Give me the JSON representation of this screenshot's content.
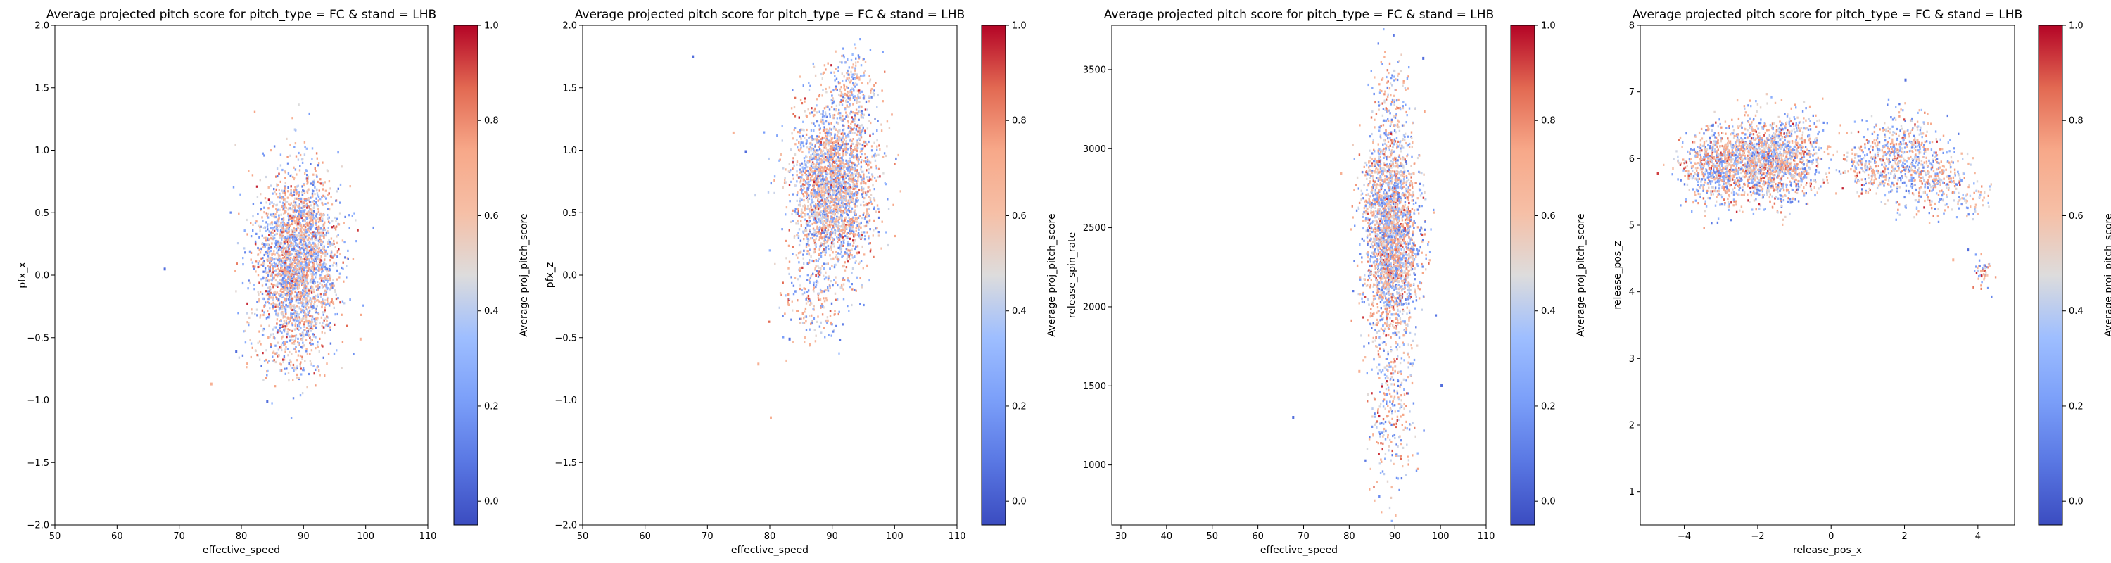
{
  "chart_data": [
    {
      "type": "heatmap",
      "title": "Average projected pitch score for pitch_type = FC & stand = LHB",
      "xlabel": "effective_speed",
      "ylabel": "pfx_x",
      "colorbar_label": "Average proj_pitch_score",
      "colormap": "coolwarm",
      "xlim": [
        50,
        110
      ],
      "ylim": [
        -2.0,
        2.0
      ],
      "xticks": [
        "50",
        "60",
        "70",
        "80",
        "90",
        "100",
        "110"
      ],
      "yticks": [
        "−2.0",
        "−1.5",
        "−1.0",
        "−0.5",
        "0.0",
        "0.5",
        "1.0",
        "1.5",
        "2.0"
      ],
      "clim": [
        -0.05,
        1.0
      ],
      "cticks": [
        "0.0",
        "0.2",
        "0.4",
        "0.6",
        "0.8",
        "1.0"
      ],
      "clusters": [
        {
          "x": 89,
          "y": 0.15,
          "sx": 3.2,
          "sy": 0.34,
          "n": 2600
        },
        {
          "x": 88,
          "y": -0.55,
          "sx": 3.0,
          "sy": 0.18,
          "n": 220
        }
      ],
      "outliers": [
        [
          67.5,
          0.06
        ],
        [
          75,
          -0.86
        ],
        [
          84,
          -1.0
        ],
        [
          99,
          -0.5
        ],
        [
          79,
          -0.6
        ]
      ]
    },
    {
      "type": "heatmap",
      "title": "Average projected pitch score for pitch_type = FC & stand = LHB",
      "xlabel": "effective_speed",
      "ylabel": "pfx_z",
      "colorbar_label": "Average proj_pitch_score",
      "colormap": "coolwarm",
      "xlim": [
        50,
        110
      ],
      "ylim": [
        -2.0,
        2.0
      ],
      "xticks": [
        "50",
        "60",
        "70",
        "80",
        "90",
        "100",
        "110"
      ],
      "yticks": [
        "−2.0",
        "−1.5",
        "−1.0",
        "−0.5",
        "0.0",
        "0.5",
        "1.0",
        "1.5",
        "2.0"
      ],
      "clim": [
        -0.05,
        1.0
      ],
      "cticks": [
        "0.0",
        "0.2",
        "0.4",
        "0.6",
        "0.8",
        "1.0"
      ],
      "clusters": [
        {
          "x": 90,
          "y": 0.7,
          "sx": 3.2,
          "sy": 0.33,
          "n": 2600
        },
        {
          "x": 93,
          "y": 1.5,
          "sx": 2.0,
          "sy": 0.15,
          "n": 220
        },
        {
          "x": 87,
          "y": -0.15,
          "sx": 2.5,
          "sy": 0.2,
          "n": 200
        }
      ],
      "outliers": [
        [
          67.5,
          1.76
        ],
        [
          74,
          1.15
        ],
        [
          76,
          1.0
        ],
        [
          80,
          -1.13
        ],
        [
          83,
          -0.5
        ],
        [
          78,
          -0.7
        ]
      ]
    },
    {
      "type": "heatmap",
      "title": "Average projected pitch score for pitch_type = FC & stand = LHB",
      "xlabel": "effective_speed",
      "ylabel": "release_spin_rate",
      "colorbar_label": "Average proj_pitch_score",
      "colormap": "coolwarm",
      "xlim": [
        28,
        110
      ],
      "ylim": [
        620,
        3780
      ],
      "xticks": [
        "30",
        "40",
        "50",
        "60",
        "70",
        "80",
        "90",
        "100",
        "110"
      ],
      "yticks": [
        "1000",
        "1500",
        "2000",
        "2500",
        "3000",
        "3500"
      ],
      "clim": [
        -0.05,
        1.0
      ],
      "cticks": [
        "0.0",
        "0.2",
        "0.4",
        "0.6",
        "0.8",
        "1.0"
      ],
      "clusters": [
        {
          "x": 89,
          "y": 2450,
          "sx": 3.0,
          "sy": 330,
          "n": 2600
        },
        {
          "x": 89,
          "y": 1300,
          "sx": 2.5,
          "sy": 280,
          "n": 260
        },
        {
          "x": 89,
          "y": 3300,
          "sx": 2.0,
          "sy": 160,
          "n": 110
        }
      ],
      "outliers": [
        [
          67.5,
          1310
        ],
        [
          78,
          2850
        ],
        [
          100,
          1510
        ],
        [
          82,
          1600
        ],
        [
          96,
          3580
        ]
      ]
    },
    {
      "type": "heatmap",
      "title": "Average projected pitch score for pitch_type = FC & stand = LHB",
      "xlabel": "release_pos_x",
      "ylabel": "release_pos_z",
      "colorbar_label": "Average proj_pitch_score",
      "colormap": "coolwarm",
      "xlim": [
        -5.2,
        5.0
      ],
      "ylim": [
        0.5,
        8.0
      ],
      "xticks": [
        "−4",
        "−2",
        "0",
        "2",
        "4"
      ],
      "yticks": [
        "1",
        "2",
        "3",
        "4",
        "5",
        "6",
        "7",
        "8"
      ],
      "clim": [
        -0.05,
        1.0
      ],
      "cticks": [
        "0.0",
        "0.2",
        "0.4",
        "0.6",
        "0.8",
        "1.0"
      ],
      "clusters": [
        {
          "x": -3.0,
          "y": 5.9,
          "sx": 0.55,
          "sy": 0.3,
          "n": 900
        },
        {
          "x": -1.5,
          "y": 6.0,
          "sx": 0.6,
          "sy": 0.32,
          "n": 1400
        },
        {
          "x": 1.9,
          "y": 6.1,
          "sx": 0.5,
          "sy": 0.3,
          "n": 500
        },
        {
          "x": 2.9,
          "y": 5.7,
          "sx": 0.4,
          "sy": 0.25,
          "n": 260
        },
        {
          "x": 1.0,
          "y": 5.85,
          "sx": 0.35,
          "sy": 0.2,
          "n": 160
        },
        {
          "x": 4.1,
          "y": 4.3,
          "sx": 0.12,
          "sy": 0.12,
          "n": 45
        },
        {
          "x": 3.9,
          "y": 5.4,
          "sx": 0.25,
          "sy": 0.15,
          "n": 40
        }
      ],
      "outliers": [
        [
          2.0,
          7.2
        ],
        [
          3.3,
          4.5
        ],
        [
          3.7,
          4.65
        ],
        [
          -0.1,
          6.2
        ]
      ]
    }
  ]
}
